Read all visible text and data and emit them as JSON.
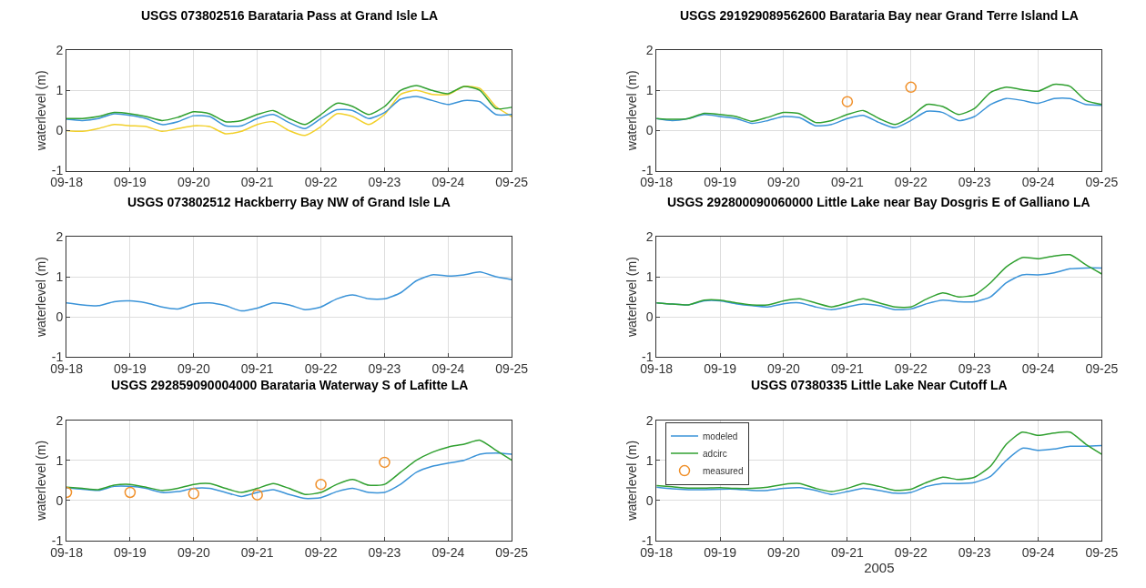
{
  "chart_data": [
    {
      "type": "line",
      "title": "USGS 073802516 Barataria Pass at Grand Isle LA",
      "ylabel": "waterlevel (m)",
      "xlim": [
        "2005-09-18",
        "2005-09-25"
      ],
      "xticks": [
        {
          "value": "2005-09-18",
          "label": "09-18"
        },
        {
          "value": "2005-09-19",
          "label": "09-19"
        },
        {
          "value": "2005-09-20",
          "label": "09-20"
        },
        {
          "value": "2005-09-21",
          "label": "09-21"
        },
        {
          "value": "2005-09-22",
          "label": "09-22"
        },
        {
          "value": "2005-09-23",
          "label": "09-23"
        },
        {
          "value": "2005-09-24",
          "label": "09-24"
        },
        {
          "value": "2005-09-25",
          "label": "09-25"
        }
      ],
      "ylim": [
        -1,
        2
      ],
      "yticks": [
        -1,
        0,
        1,
        2
      ],
      "grid": true,
      "legend": false,
      "x": [
        "2005-09-18T00:00",
        "2005-09-18T06:00",
        "2005-09-18T12:00",
        "2005-09-18T18:00",
        "2005-09-19T00:00",
        "2005-09-19T06:00",
        "2005-09-19T12:00",
        "2005-09-19T18:00",
        "2005-09-20T00:00",
        "2005-09-20T06:00",
        "2005-09-20T12:00",
        "2005-09-20T18:00",
        "2005-09-21T00:00",
        "2005-09-21T06:00",
        "2005-09-21T12:00",
        "2005-09-21T18:00",
        "2005-09-22T00:00",
        "2005-09-22T06:00",
        "2005-09-22T12:00",
        "2005-09-22T18:00",
        "2005-09-23T00:00",
        "2005-09-23T06:00",
        "2005-09-23T12:00",
        "2005-09-23T18:00",
        "2005-09-24T00:00",
        "2005-09-24T06:00",
        "2005-09-24T12:00",
        "2005-09-24T18:00",
        "2005-09-25T00:00"
      ],
      "series": [
        {
          "color": "#f2d02a",
          "values": [
            0,
            -0.02,
            0.05,
            0.15,
            0.12,
            0.1,
            -0.02,
            0.05,
            0.12,
            0.1,
            -0.08,
            -0.02,
            0.15,
            0.22,
            0,
            -0.12,
            0.1,
            0.42,
            0.35,
            0.15,
            0.4,
            0.9,
            1.0,
            0.9,
            0.9,
            1.1,
            1.05,
            0.6,
            0.35
          ]
        },
        {
          "color": "#3a93d8",
          "values": [
            0.28,
            0.25,
            0.3,
            0.42,
            0.38,
            0.3,
            0.15,
            0.22,
            0.37,
            0.35,
            0.12,
            0.12,
            0.3,
            0.4,
            0.2,
            0.05,
            0.3,
            0.52,
            0.5,
            0.3,
            0.45,
            0.78,
            0.85,
            0.75,
            0.65,
            0.75,
            0.72,
            0.4,
            0.4
          ]
        },
        {
          "color": "#30a030",
          "values": [
            0.3,
            0.3,
            0.35,
            0.45,
            0.42,
            0.35,
            0.25,
            0.33,
            0.47,
            0.42,
            0.22,
            0.25,
            0.4,
            0.5,
            0.3,
            0.15,
            0.4,
            0.68,
            0.6,
            0.4,
            0.6,
            1.0,
            1.12,
            1.0,
            0.92,
            1.1,
            1.0,
            0.55,
            0.58
          ]
        }
      ]
    },
    {
      "type": "line",
      "title": "USGS 291929089562600 Barataria Bay near Grand Terre Island LA",
      "ylabel": "waterlevel (m)",
      "xlim": [
        "2005-09-18",
        "2005-09-25"
      ],
      "xticks": [
        {
          "value": "2005-09-18",
          "label": "09-18"
        },
        {
          "value": "2005-09-19",
          "label": "09-19"
        },
        {
          "value": "2005-09-20",
          "label": "09-20"
        },
        {
          "value": "2005-09-21",
          "label": "09-21"
        },
        {
          "value": "2005-09-22",
          "label": "09-22"
        },
        {
          "value": "2005-09-23",
          "label": "09-23"
        },
        {
          "value": "2005-09-24",
          "label": "09-24"
        },
        {
          "value": "2005-09-25",
          "label": "09-25"
        }
      ],
      "ylim": [
        -1,
        2
      ],
      "yticks": [
        -1,
        0,
        1,
        2
      ],
      "grid": true,
      "legend": false,
      "x": [
        "2005-09-18T00:00",
        "2005-09-18T06:00",
        "2005-09-18T12:00",
        "2005-09-18T18:00",
        "2005-09-19T00:00",
        "2005-09-19T06:00",
        "2005-09-19T12:00",
        "2005-09-19T18:00",
        "2005-09-20T00:00",
        "2005-09-20T06:00",
        "2005-09-20T12:00",
        "2005-09-20T18:00",
        "2005-09-21T00:00",
        "2005-09-21T06:00",
        "2005-09-21T12:00",
        "2005-09-21T18:00",
        "2005-09-22T00:00",
        "2005-09-22T06:00",
        "2005-09-22T12:00",
        "2005-09-22T18:00",
        "2005-09-23T00:00",
        "2005-09-23T06:00",
        "2005-09-23T12:00",
        "2005-09-23T18:00",
        "2005-09-24T00:00",
        "2005-09-24T06:00",
        "2005-09-24T12:00",
        "2005-09-24T18:00",
        "2005-09-25T00:00"
      ],
      "series": [
        {
          "color": "#3a93d8",
          "values": [
            0.3,
            0.25,
            0.3,
            0.4,
            0.35,
            0.3,
            0.18,
            0.25,
            0.35,
            0.32,
            0.12,
            0.15,
            0.3,
            0.38,
            0.2,
            0.07,
            0.25,
            0.48,
            0.45,
            0.25,
            0.35,
            0.65,
            0.8,
            0.75,
            0.68,
            0.8,
            0.8,
            0.65,
            0.63
          ]
        },
        {
          "color": "#30a030",
          "values": [
            0.3,
            0.28,
            0.3,
            0.43,
            0.4,
            0.35,
            0.23,
            0.33,
            0.45,
            0.42,
            0.2,
            0.25,
            0.4,
            0.5,
            0.3,
            0.15,
            0.35,
            0.65,
            0.6,
            0.4,
            0.55,
            0.95,
            1.08,
            1.02,
            0.98,
            1.15,
            1.1,
            0.75,
            0.65
          ]
        },
        {
          "type": "scatter",
          "marker": "circle",
          "color": "#f0902a",
          "x": [
            "2005-09-21T00:00",
            "2005-09-22T00:00"
          ],
          "values": [
            0.72,
            1.08
          ]
        }
      ]
    },
    {
      "type": "line",
      "title": "USGS 073802512 Hackberry Bay NW of Grand Isle LA",
      "ylabel": "waterlevel (m)",
      "xlim": [
        "2005-09-18",
        "2005-09-25"
      ],
      "xticks": [
        {
          "value": "2005-09-18",
          "label": "09-18"
        },
        {
          "value": "2005-09-19",
          "label": "09-19"
        },
        {
          "value": "2005-09-20",
          "label": "09-20"
        },
        {
          "value": "2005-09-21",
          "label": "09-21"
        },
        {
          "value": "2005-09-22",
          "label": "09-22"
        },
        {
          "value": "2005-09-23",
          "label": "09-23"
        },
        {
          "value": "2005-09-24",
          "label": "09-24"
        },
        {
          "value": "2005-09-25",
          "label": "09-25"
        }
      ],
      "ylim": [
        -1,
        2
      ],
      "yticks": [
        -1,
        0,
        1,
        2
      ],
      "grid": true,
      "legend": false,
      "x": [
        "2005-09-18T00:00",
        "2005-09-18T06:00",
        "2005-09-18T12:00",
        "2005-09-18T18:00",
        "2005-09-19T00:00",
        "2005-09-19T06:00",
        "2005-09-19T12:00",
        "2005-09-19T18:00",
        "2005-09-20T00:00",
        "2005-09-20T06:00",
        "2005-09-20T12:00",
        "2005-09-20T18:00",
        "2005-09-21T00:00",
        "2005-09-21T06:00",
        "2005-09-21T12:00",
        "2005-09-21T18:00",
        "2005-09-22T00:00",
        "2005-09-22T06:00",
        "2005-09-22T12:00",
        "2005-09-22T18:00",
        "2005-09-23T00:00",
        "2005-09-23T06:00",
        "2005-09-23T12:00",
        "2005-09-23T18:00",
        "2005-09-24T00:00",
        "2005-09-24T06:00",
        "2005-09-24T12:00",
        "2005-09-24T18:00",
        "2005-09-25T00:00"
      ],
      "series": [
        {
          "color": "#3a93d8",
          "values": [
            0.35,
            0.3,
            0.28,
            0.38,
            0.4,
            0.35,
            0.25,
            0.2,
            0.32,
            0.35,
            0.28,
            0.15,
            0.22,
            0.35,
            0.3,
            0.18,
            0.25,
            0.45,
            0.55,
            0.45,
            0.45,
            0.6,
            0.9,
            1.05,
            1.02,
            1.05,
            1.12,
            1.0,
            0.93
          ]
        }
      ]
    },
    {
      "type": "line",
      "title": "USGS 292800090060000 Little Lake near Bay Dosgris E of Galliano LA",
      "ylabel": "waterlevel (m)",
      "xlim": [
        "2005-09-18",
        "2005-09-25"
      ],
      "xticks": [
        {
          "value": "2005-09-18",
          "label": "09-18"
        },
        {
          "value": "2005-09-19",
          "label": "09-19"
        },
        {
          "value": "2005-09-20",
          "label": "09-20"
        },
        {
          "value": "2005-09-21",
          "label": "09-21"
        },
        {
          "value": "2005-09-22",
          "label": "09-22"
        },
        {
          "value": "2005-09-23",
          "label": "09-23"
        },
        {
          "value": "2005-09-24",
          "label": "09-24"
        },
        {
          "value": "2005-09-25",
          "label": "09-25"
        }
      ],
      "ylim": [
        -1,
        2
      ],
      "yticks": [
        -1,
        0,
        1,
        2
      ],
      "grid": true,
      "legend": false,
      "x": [
        "2005-09-18T00:00",
        "2005-09-18T06:00",
        "2005-09-18T12:00",
        "2005-09-18T18:00",
        "2005-09-19T00:00",
        "2005-09-19T06:00",
        "2005-09-19T12:00",
        "2005-09-19T18:00",
        "2005-09-20T00:00",
        "2005-09-20T06:00",
        "2005-09-20T12:00",
        "2005-09-20T18:00",
        "2005-09-21T00:00",
        "2005-09-21T06:00",
        "2005-09-21T12:00",
        "2005-09-21T18:00",
        "2005-09-22T00:00",
        "2005-09-22T06:00",
        "2005-09-22T12:00",
        "2005-09-22T18:00",
        "2005-09-23T00:00",
        "2005-09-23T06:00",
        "2005-09-23T12:00",
        "2005-09-23T18:00",
        "2005-09-24T00:00",
        "2005-09-24T06:00",
        "2005-09-24T12:00",
        "2005-09-24T18:00",
        "2005-09-25T00:00"
      ],
      "series": [
        {
          "color": "#3a93d8",
          "values": [
            0.35,
            0.32,
            0.3,
            0.4,
            0.4,
            0.33,
            0.28,
            0.25,
            0.33,
            0.35,
            0.25,
            0.18,
            0.25,
            0.32,
            0.28,
            0.18,
            0.2,
            0.33,
            0.42,
            0.38,
            0.38,
            0.5,
            0.85,
            1.05,
            1.05,
            1.1,
            1.2,
            1.22,
            1.22
          ]
        },
        {
          "color": "#30a030",
          "values": [
            0.35,
            0.32,
            0.3,
            0.42,
            0.42,
            0.35,
            0.3,
            0.3,
            0.4,
            0.45,
            0.35,
            0.25,
            0.35,
            0.45,
            0.35,
            0.25,
            0.25,
            0.45,
            0.6,
            0.5,
            0.55,
            0.85,
            1.25,
            1.48,
            1.45,
            1.52,
            1.55,
            1.3,
            1.07
          ]
        }
      ]
    },
    {
      "type": "line",
      "title": "USGS 292859090004000 Barataria Waterway S of Lafitte LA",
      "ylabel": "waterlevel (m)",
      "xlim": [
        "2005-09-18",
        "2005-09-25"
      ],
      "xticks": [
        {
          "value": "2005-09-18",
          "label": "09-18"
        },
        {
          "value": "2005-09-19",
          "label": "09-19"
        },
        {
          "value": "2005-09-20",
          "label": "09-20"
        },
        {
          "value": "2005-09-21",
          "label": "09-21"
        },
        {
          "value": "2005-09-22",
          "label": "09-22"
        },
        {
          "value": "2005-09-23",
          "label": "09-23"
        },
        {
          "value": "2005-09-24",
          "label": "09-24"
        },
        {
          "value": "2005-09-25",
          "label": "09-25"
        }
      ],
      "ylim": [
        -1,
        2
      ],
      "yticks": [
        -1,
        0,
        1,
        2
      ],
      "grid": true,
      "legend": false,
      "x": [
        "2005-09-18T00:00",
        "2005-09-18T06:00",
        "2005-09-18T12:00",
        "2005-09-18T18:00",
        "2005-09-19T00:00",
        "2005-09-19T06:00",
        "2005-09-19T12:00",
        "2005-09-19T18:00",
        "2005-09-20T00:00",
        "2005-09-20T06:00",
        "2005-09-20T12:00",
        "2005-09-20T18:00",
        "2005-09-21T00:00",
        "2005-09-21T06:00",
        "2005-09-21T12:00",
        "2005-09-21T18:00",
        "2005-09-22T00:00",
        "2005-09-22T06:00",
        "2005-09-22T12:00",
        "2005-09-22T18:00",
        "2005-09-23T00:00",
        "2005-09-23T06:00",
        "2005-09-23T12:00",
        "2005-09-23T18:00",
        "2005-09-24T00:00",
        "2005-09-24T06:00",
        "2005-09-24T12:00",
        "2005-09-24T18:00",
        "2005-09-25T00:00"
      ],
      "series": [
        {
          "color": "#3a93d8",
          "values": [
            0.32,
            0.28,
            0.25,
            0.35,
            0.35,
            0.3,
            0.2,
            0.22,
            0.3,
            0.3,
            0.2,
            0.1,
            0.2,
            0.27,
            0.15,
            0.05,
            0.07,
            0.22,
            0.3,
            0.2,
            0.2,
            0.4,
            0.7,
            0.85,
            0.93,
            1.0,
            1.15,
            1.18,
            1.15
          ]
        },
        {
          "color": "#30a030",
          "values": [
            0.33,
            0.3,
            0.27,
            0.38,
            0.4,
            0.33,
            0.25,
            0.3,
            0.4,
            0.42,
            0.3,
            0.2,
            0.3,
            0.42,
            0.3,
            0.15,
            0.2,
            0.4,
            0.52,
            0.38,
            0.4,
            0.7,
            1.0,
            1.2,
            1.33,
            1.4,
            1.5,
            1.25,
            1.0
          ]
        },
        {
          "type": "scatter",
          "marker": "circle",
          "color": "#f0902a",
          "x": [
            "2005-09-18T00:00",
            "2005-09-19T00:00",
            "2005-09-20T00:00",
            "2005-09-21T00:00",
            "2005-09-22T00:00",
            "2005-09-23T00:00"
          ],
          "values": [
            0.2,
            0.2,
            0.17,
            0.14,
            0.4,
            0.95
          ]
        }
      ]
    },
    {
      "type": "line",
      "title": "USGS 07380335 Little Lake Near Cutoff LA",
      "ylabel": "waterlevel (m)",
      "xlabel": "2005",
      "xlim": [
        "2005-09-18",
        "2005-09-25"
      ],
      "xticks": [
        {
          "value": "2005-09-18",
          "label": "09-18"
        },
        {
          "value": "2005-09-19",
          "label": "09-19"
        },
        {
          "value": "2005-09-20",
          "label": "09-20"
        },
        {
          "value": "2005-09-21",
          "label": "09-21"
        },
        {
          "value": "2005-09-22",
          "label": "09-22"
        },
        {
          "value": "2005-09-23",
          "label": "09-23"
        },
        {
          "value": "2005-09-24",
          "label": "09-24"
        },
        {
          "value": "2005-09-25",
          "label": "09-25"
        }
      ],
      "ylim": [
        -1,
        2
      ],
      "yticks": [
        -1,
        0,
        1,
        2
      ],
      "grid": true,
      "legend": "top left",
      "x": [
        "2005-09-18T00:00",
        "2005-09-18T06:00",
        "2005-09-18T12:00",
        "2005-09-18T18:00",
        "2005-09-19T00:00",
        "2005-09-19T06:00",
        "2005-09-19T12:00",
        "2005-09-19T18:00",
        "2005-09-20T00:00",
        "2005-09-20T06:00",
        "2005-09-20T12:00",
        "2005-09-20T18:00",
        "2005-09-21T00:00",
        "2005-09-21T06:00",
        "2005-09-21T12:00",
        "2005-09-21T18:00",
        "2005-09-22T00:00",
        "2005-09-22T06:00",
        "2005-09-22T12:00",
        "2005-09-22T18:00",
        "2005-09-23T00:00",
        "2005-09-23T06:00",
        "2005-09-23T12:00",
        "2005-09-23T18:00",
        "2005-09-24T00:00",
        "2005-09-24T06:00",
        "2005-09-24T12:00",
        "2005-09-24T18:00",
        "2005-09-25T00:00"
      ],
      "series": [
        {
          "name": "modeled",
          "color": "#3a93d8",
          "values": [
            0.33,
            0.29,
            0.27,
            0.27,
            0.28,
            0.28,
            0.25,
            0.25,
            0.3,
            0.32,
            0.25,
            0.15,
            0.22,
            0.3,
            0.25,
            0.18,
            0.2,
            0.35,
            0.42,
            0.42,
            0.45,
            0.6,
            1.0,
            1.3,
            1.25,
            1.28,
            1.35,
            1.35,
            1.37
          ]
        },
        {
          "name": "adcirc",
          "color": "#30a030",
          "values": [
            0.37,
            0.34,
            0.31,
            0.31,
            0.32,
            0.3,
            0.3,
            0.33,
            0.4,
            0.42,
            0.3,
            0.22,
            0.3,
            0.42,
            0.35,
            0.25,
            0.28,
            0.45,
            0.58,
            0.52,
            0.58,
            0.85,
            1.4,
            1.7,
            1.62,
            1.68,
            1.7,
            1.4,
            1.15
          ]
        },
        {
          "name": "measured",
          "type": "scatter",
          "marker": "circle",
          "color": "#f0902a",
          "values": [
            null,
            null,
            null,
            null,
            null,
            null,
            null,
            null,
            null,
            null,
            null,
            null,
            null,
            null,
            null,
            null,
            null,
            null,
            null,
            null,
            null,
            null,
            null,
            null,
            null,
            null,
            null,
            null,
            null
          ]
        }
      ]
    }
  ]
}
